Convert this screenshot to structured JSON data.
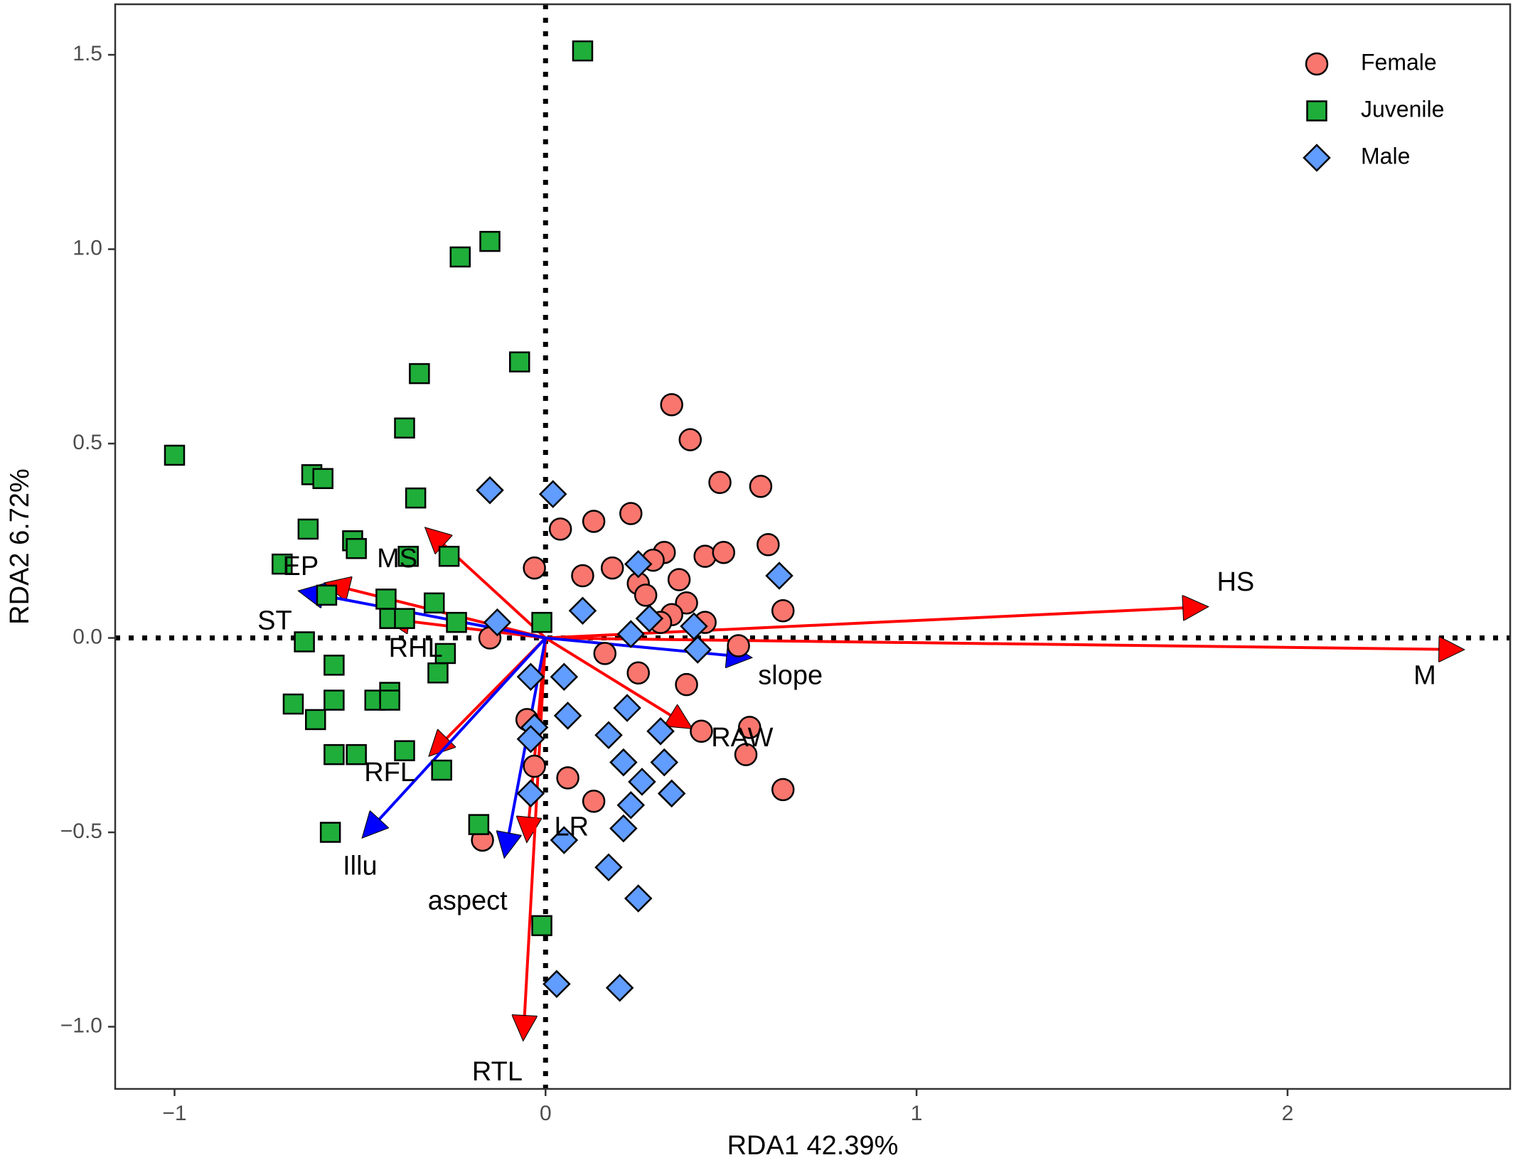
{
  "chart_data": {
    "type": "scatter",
    "xlabel": "RDA1 42.39%",
    "ylabel": "RDA2 6.72%",
    "xlim": [
      -1.16,
      2.6
    ],
    "ylim": [
      -1.16,
      1.63
    ],
    "x_ticks": [
      -1,
      0,
      1,
      2
    ],
    "x_tick_labels": [
      "−1",
      "0",
      "1",
      "2"
    ],
    "y_ticks": [
      -1.0,
      -0.5,
      0.0,
      0.5,
      1.0,
      1.5
    ],
    "y_tick_labels": [
      "−1.0",
      "−0.5",
      "0.0",
      "0.5",
      "1.0",
      "1.5"
    ],
    "grid": false,
    "zero_lines": "dotted",
    "legend_position": "top-right",
    "series": [
      {
        "name": "Female",
        "marker": "circle",
        "color": "#F8766D",
        "points": [
          [
            0.34,
            0.6
          ],
          [
            0.39,
            0.51
          ],
          [
            0.47,
            0.4
          ],
          [
            0.58,
            0.39
          ],
          [
            0.23,
            0.32
          ],
          [
            0.04,
            0.28
          ],
          [
            0.13,
            0.3
          ],
          [
            0.32,
            0.22
          ],
          [
            0.29,
            0.2
          ],
          [
            0.43,
            0.21
          ],
          [
            0.48,
            0.22
          ],
          [
            0.6,
            0.24
          ],
          [
            -0.03,
            0.18
          ],
          [
            0.18,
            0.18
          ],
          [
            0.1,
            0.16
          ],
          [
            0.25,
            0.14
          ],
          [
            0.27,
            0.11
          ],
          [
            0.36,
            0.15
          ],
          [
            0.64,
            0.07
          ],
          [
            0.38,
            0.09
          ],
          [
            0.34,
            0.06
          ],
          [
            0.43,
            0.04
          ],
          [
            0.31,
            0.04
          ],
          [
            0.52,
            -0.02
          ],
          [
            0.16,
            -0.04
          ],
          [
            0.25,
            -0.09
          ],
          [
            0.38,
            -0.12
          ],
          [
            0.55,
            -0.23
          ],
          [
            0.42,
            -0.24
          ],
          [
            0.54,
            -0.3
          ],
          [
            0.64,
            -0.39
          ],
          [
            0.06,
            -0.36
          ],
          [
            0.13,
            -0.42
          ],
          [
            -0.05,
            -0.21
          ],
          [
            -0.03,
            -0.33
          ],
          [
            -0.17,
            -0.52
          ],
          [
            -0.15,
            0.0
          ]
        ]
      },
      {
        "name": "Juvenile",
        "marker": "square",
        "color": "#1FAE3A",
        "points": [
          [
            0.1,
            1.51
          ],
          [
            -0.15,
            1.02
          ],
          [
            -0.23,
            0.98
          ],
          [
            -0.07,
            0.71
          ],
          [
            -0.34,
            0.68
          ],
          [
            -0.38,
            0.54
          ],
          [
            -1.0,
            0.47
          ],
          [
            -0.63,
            0.42
          ],
          [
            -0.6,
            0.41
          ],
          [
            -0.35,
            0.36
          ],
          [
            -0.64,
            0.28
          ],
          [
            -0.52,
            0.25
          ],
          [
            -0.51,
            0.23
          ],
          [
            -0.26,
            0.21
          ],
          [
            -0.37,
            0.21
          ],
          [
            -0.71,
            0.19
          ],
          [
            -0.59,
            0.11
          ],
          [
            -0.43,
            0.1
          ],
          [
            -0.3,
            0.09
          ],
          [
            -0.42,
            0.05
          ],
          [
            -0.38,
            0.05
          ],
          [
            -0.24,
            0.04
          ],
          [
            -0.01,
            0.04
          ],
          [
            -0.65,
            -0.01
          ],
          [
            -0.27,
            -0.04
          ],
          [
            -0.57,
            -0.07
          ],
          [
            -0.29,
            -0.09
          ],
          [
            -0.68,
            -0.17
          ],
          [
            -0.57,
            -0.16
          ],
          [
            -0.46,
            -0.16
          ],
          [
            -0.42,
            -0.14
          ],
          [
            -0.42,
            -0.16
          ],
          [
            -0.62,
            -0.21
          ],
          [
            -0.57,
            -0.3
          ],
          [
            -0.51,
            -0.3
          ],
          [
            -0.38,
            -0.29
          ],
          [
            -0.28,
            -0.34
          ],
          [
            -0.58,
            -0.5
          ],
          [
            -0.18,
            -0.48
          ],
          [
            -0.01,
            -0.74
          ]
        ]
      },
      {
        "name": "Male",
        "marker": "diamond",
        "color": "#619CFF",
        "points": [
          [
            -0.15,
            0.38
          ],
          [
            0.02,
            0.37
          ],
          [
            0.25,
            0.19
          ],
          [
            0.63,
            0.16
          ],
          [
            0.1,
            0.07
          ],
          [
            0.28,
            0.05
          ],
          [
            -0.13,
            0.04
          ],
          [
            0.23,
            0.01
          ],
          [
            0.4,
            0.03
          ],
          [
            0.41,
            -0.03
          ],
          [
            -0.04,
            -0.1
          ],
          [
            0.05,
            -0.1
          ],
          [
            0.06,
            -0.2
          ],
          [
            0.22,
            -0.18
          ],
          [
            -0.03,
            -0.23
          ],
          [
            0.17,
            -0.25
          ],
          [
            0.31,
            -0.24
          ],
          [
            -0.04,
            -0.26
          ],
          [
            0.21,
            -0.32
          ],
          [
            0.32,
            -0.32
          ],
          [
            0.26,
            -0.37
          ],
          [
            0.34,
            -0.4
          ],
          [
            -0.04,
            -0.4
          ],
          [
            0.23,
            -0.43
          ],
          [
            0.21,
            -0.49
          ],
          [
            0.05,
            -0.52
          ],
          [
            0.17,
            -0.59
          ],
          [
            0.25,
            -0.67
          ],
          [
            0.03,
            -0.89
          ],
          [
            0.2,
            -0.9
          ]
        ]
      }
    ],
    "vectors": [
      {
        "label": "HS",
        "color": "#FF0000",
        "x": 1.78,
        "y": 0.08,
        "lx": 1.86,
        "ly": 0.14
      },
      {
        "label": "M",
        "color": "#FF0000",
        "x": 2.47,
        "y": -0.03,
        "lx": 2.37,
        "ly": -0.1
      },
      {
        "label": "RAW",
        "color": "#FF0000",
        "x": 0.39,
        "y": -0.23,
        "lx": 0.53,
        "ly": -0.26
      },
      {
        "label": "LR",
        "color": "#FF0000",
        "x": -0.05,
        "y": -0.52,
        "lx": 0.07,
        "ly": -0.49
      },
      {
        "label": "RTL",
        "color": "#FF0000",
        "x": -0.06,
        "y": -1.03,
        "lx": -0.13,
        "ly": -1.12
      },
      {
        "label": "RFL",
        "color": "#FF0000",
        "x": -0.31,
        "y": -0.3,
        "lx": -0.42,
        "ly": -0.35
      },
      {
        "label": "RHL",
        "color": "#FF0000",
        "x": -0.43,
        "y": 0.05,
        "lx": -0.35,
        "ly": -0.03
      },
      {
        "label": "MS",
        "color": "#FF0000",
        "x": -0.32,
        "y": 0.28,
        "lx": -0.4,
        "ly": 0.2
      },
      {
        "label": "EP",
        "color": "#FF0000",
        "x": -0.59,
        "y": 0.14,
        "lx": -0.66,
        "ly": 0.18
      },
      {
        "label": "ST",
        "color": "#0000FF",
        "x": -0.66,
        "y": 0.12,
        "lx": -0.73,
        "ly": 0.04
      },
      {
        "label": "slope",
        "color": "#0000FF",
        "x": 0.55,
        "y": -0.05,
        "lx": 0.66,
        "ly": -0.1
      },
      {
        "label": "Illu",
        "color": "#0000FF",
        "x": -0.49,
        "y": -0.51,
        "lx": -0.5,
        "ly": -0.59
      },
      {
        "label": "aspect",
        "color": "#0000FF",
        "x": -0.11,
        "y": -0.56,
        "lx": -0.21,
        "ly": -0.68
      }
    ]
  }
}
